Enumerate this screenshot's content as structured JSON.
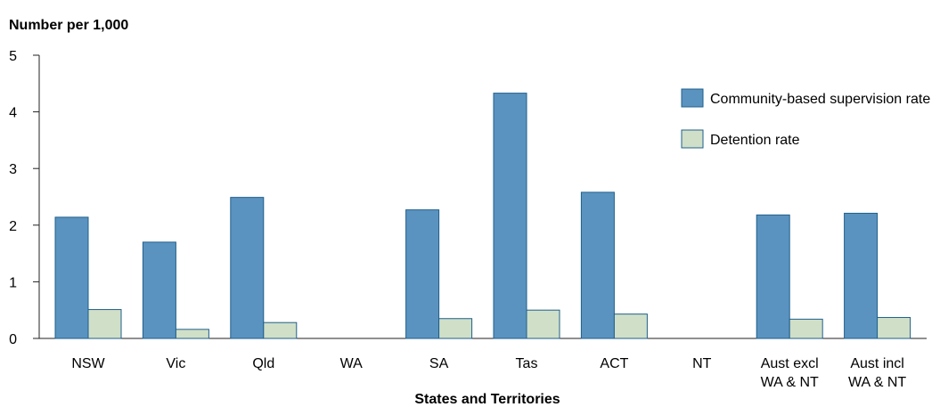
{
  "chart_data": {
    "type": "bar",
    "title": "",
    "ylabel": "Number per 1,000",
    "xlabel": "States and Territories",
    "ylim": [
      0,
      5
    ],
    "yticks": [
      0,
      1,
      2,
      3,
      4,
      5
    ],
    "grid": false,
    "legend_position": "top-right",
    "categories": [
      [
        "NSW"
      ],
      [
        "Vic"
      ],
      [
        "Qld"
      ],
      [
        "WA"
      ],
      [
        "SA"
      ],
      [
        "Tas"
      ],
      [
        "ACT"
      ],
      [
        "NT"
      ],
      [
        "Aust excl",
        "WA & NT"
      ],
      [
        "Aust incl",
        "WA & NT"
      ]
    ],
    "series": [
      {
        "name": "Community-based supervision rate",
        "color": "#5b93c0",
        "stroke": "#1f5f8b",
        "values": [
          2.14,
          1.7,
          2.49,
          null,
          2.27,
          4.33,
          2.58,
          null,
          2.18,
          2.21
        ]
      },
      {
        "name": "Detention rate",
        "color": "#d0dfc8",
        "stroke": "#1f5f8b",
        "values": [
          0.51,
          0.16,
          0.28,
          null,
          0.35,
          0.5,
          0.43,
          null,
          0.34,
          0.37
        ]
      }
    ]
  }
}
